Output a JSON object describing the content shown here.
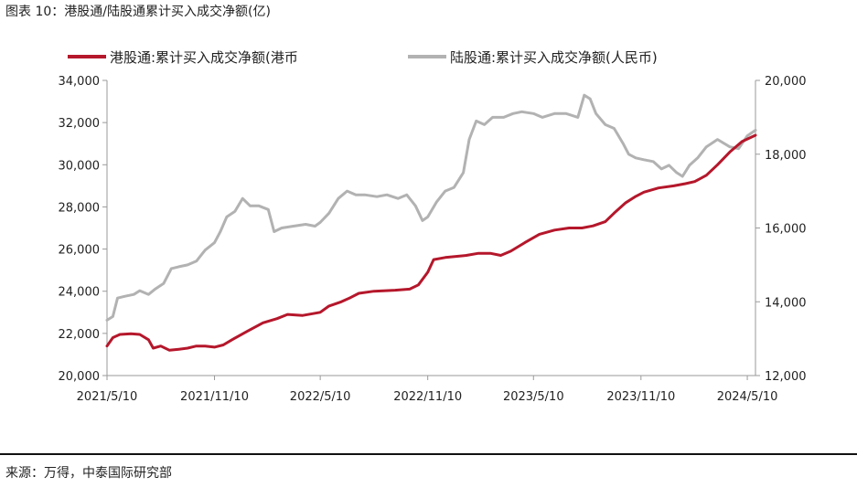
{
  "figure_title": "图表 10：港股通/陆股通累计买入成交净额(亿)",
  "source": "来源：万得，中泰国际研究部",
  "colors": {
    "hk": "#b5172b",
    "cn": "#b2b2b2",
    "axis": "#9a9a9a",
    "text": "#222222"
  },
  "chart_data": {
    "type": "line",
    "legend_position": "top",
    "grid": false,
    "x_range": [
      "2021-05-10",
      "2024-05-24"
    ],
    "x_ticks": [
      "2021/5/10",
      "2021/11/10",
      "2022/5/10",
      "2022/11/10",
      "2023/5/10",
      "2023/11/10",
      "2024/5/10"
    ],
    "y_left": {
      "ylim": [
        20000,
        34000
      ],
      "ticks": [
        "20,000",
        "22,000",
        "24,000",
        "26,000",
        "28,000",
        "30,000",
        "32,000",
        "34,000"
      ]
    },
    "y_right": {
      "ylim": [
        12000,
        20000
      ],
      "ticks": [
        "12,000",
        "14,000",
        "16,000",
        "18,000",
        "20,000"
      ]
    },
    "series": [
      {
        "name": "港股通:累计买入成交净额(港币",
        "axis": "left",
        "points": [
          [
            "2021-05-10",
            21400
          ],
          [
            "2021-05-20",
            21800
          ],
          [
            "2021-06-01",
            21950
          ],
          [
            "2021-06-20",
            21980
          ],
          [
            "2021-07-05",
            21950
          ],
          [
            "2021-07-20",
            21700
          ],
          [
            "2021-07-28",
            21300
          ],
          [
            "2021-08-10",
            21400
          ],
          [
            "2021-08-25",
            21200
          ],
          [
            "2021-09-10",
            21250
          ],
          [
            "2021-09-25",
            21300
          ],
          [
            "2021-10-10",
            21400
          ],
          [
            "2021-10-25",
            21400
          ],
          [
            "2021-11-10",
            21350
          ],
          [
            "2021-11-25",
            21450
          ],
          [
            "2021-12-10",
            21700
          ],
          [
            "2022-01-05",
            22100
          ],
          [
            "2022-02-01",
            22500
          ],
          [
            "2022-02-25",
            22700
          ],
          [
            "2022-03-15",
            22900
          ],
          [
            "2022-04-10",
            22850
          ],
          [
            "2022-05-10",
            23000
          ],
          [
            "2022-05-25",
            23300
          ],
          [
            "2022-06-15",
            23500
          ],
          [
            "2022-07-01",
            23700
          ],
          [
            "2022-07-15",
            23900
          ],
          [
            "2022-08-10",
            24000
          ],
          [
            "2022-09-15",
            24050
          ],
          [
            "2022-10-10",
            24100
          ],
          [
            "2022-10-25",
            24300
          ],
          [
            "2022-11-10",
            24900
          ],
          [
            "2022-11-20",
            25500
          ],
          [
            "2022-12-10",
            25600
          ],
          [
            "2023-01-15",
            25700
          ],
          [
            "2023-02-05",
            25800
          ],
          [
            "2023-02-25",
            25800
          ],
          [
            "2023-03-15",
            25700
          ],
          [
            "2023-04-01",
            25900
          ],
          [
            "2023-04-25",
            26300
          ],
          [
            "2023-05-20",
            26700
          ],
          [
            "2023-06-15",
            26900
          ],
          [
            "2023-07-10",
            27000
          ],
          [
            "2023-08-01",
            27000
          ],
          [
            "2023-08-20",
            27100
          ],
          [
            "2023-09-10",
            27300
          ],
          [
            "2023-09-25",
            27700
          ],
          [
            "2023-10-15",
            28200
          ],
          [
            "2023-11-01",
            28500
          ],
          [
            "2023-11-15",
            28700
          ],
          [
            "2023-12-10",
            28900
          ],
          [
            "2024-01-05",
            29000
          ],
          [
            "2024-01-25",
            29100
          ],
          [
            "2024-02-10",
            29200
          ],
          [
            "2024-03-01",
            29500
          ],
          [
            "2024-03-20",
            30000
          ],
          [
            "2024-04-10",
            30600
          ],
          [
            "2024-05-01",
            31100
          ],
          [
            "2024-05-24",
            31400
          ]
        ]
      },
      {
        "name": "陆股通:累计买入成交净额(人民币)",
        "axis": "right",
        "points": [
          [
            "2021-05-10",
            13500
          ],
          [
            "2021-05-20",
            13600
          ],
          [
            "2021-05-28",
            14100
          ],
          [
            "2021-06-10",
            14150
          ],
          [
            "2021-06-25",
            14200
          ],
          [
            "2021-07-05",
            14300
          ],
          [
            "2021-07-20",
            14200
          ],
          [
            "2021-08-01",
            14350
          ],
          [
            "2021-08-15",
            14500
          ],
          [
            "2021-08-28",
            14900
          ],
          [
            "2021-09-10",
            14950
          ],
          [
            "2021-09-25",
            15000
          ],
          [
            "2021-10-10",
            15100
          ],
          [
            "2021-10-25",
            15400
          ],
          [
            "2021-11-10",
            15600
          ],
          [
            "2021-11-20",
            15900
          ],
          [
            "2021-12-01",
            16300
          ],
          [
            "2021-12-15",
            16450
          ],
          [
            "2021-12-28",
            16800
          ],
          [
            "2022-01-10",
            16600
          ],
          [
            "2022-01-25",
            16600
          ],
          [
            "2022-02-10",
            16500
          ],
          [
            "2022-02-20",
            15900
          ],
          [
            "2022-03-05",
            16000
          ],
          [
            "2022-03-25",
            16050
          ],
          [
            "2022-04-15",
            16100
          ],
          [
            "2022-05-01",
            16050
          ],
          [
            "2022-05-10",
            16150
          ],
          [
            "2022-05-25",
            16400
          ],
          [
            "2022-06-10",
            16800
          ],
          [
            "2022-06-25",
            17000
          ],
          [
            "2022-07-10",
            16900
          ],
          [
            "2022-07-25",
            16900
          ],
          [
            "2022-08-15",
            16850
          ],
          [
            "2022-09-01",
            16900
          ],
          [
            "2022-09-20",
            16800
          ],
          [
            "2022-10-05",
            16900
          ],
          [
            "2022-10-20",
            16600
          ],
          [
            "2022-11-01",
            16200
          ],
          [
            "2022-11-10",
            16300
          ],
          [
            "2022-11-25",
            16700
          ],
          [
            "2022-12-10",
            17000
          ],
          [
            "2022-12-25",
            17100
          ],
          [
            "2023-01-10",
            17500
          ],
          [
            "2023-01-20",
            18400
          ],
          [
            "2023-02-01",
            18900
          ],
          [
            "2023-02-15",
            18800
          ],
          [
            "2023-03-01",
            19000
          ],
          [
            "2023-03-20",
            19000
          ],
          [
            "2023-04-05",
            19100
          ],
          [
            "2023-04-20",
            19150
          ],
          [
            "2023-05-10",
            19100
          ],
          [
            "2023-05-25",
            19000
          ],
          [
            "2023-06-15",
            19100
          ],
          [
            "2023-07-05",
            19100
          ],
          [
            "2023-07-25",
            19000
          ],
          [
            "2023-08-05",
            19600
          ],
          [
            "2023-08-15",
            19500
          ],
          [
            "2023-08-25",
            19100
          ],
          [
            "2023-09-10",
            18800
          ],
          [
            "2023-09-25",
            18700
          ],
          [
            "2023-10-10",
            18300
          ],
          [
            "2023-10-20",
            18000
          ],
          [
            "2023-11-01",
            17900
          ],
          [
            "2023-11-15",
            17850
          ],
          [
            "2023-12-01",
            17800
          ],
          [
            "2023-12-15",
            17600
          ],
          [
            "2023-12-28",
            17700
          ],
          [
            "2024-01-10",
            17500
          ],
          [
            "2024-01-20",
            17400
          ],
          [
            "2024-02-01",
            17700
          ],
          [
            "2024-02-15",
            17900
          ],
          [
            "2024-03-01",
            18200
          ],
          [
            "2024-03-20",
            18400
          ],
          [
            "2024-04-10",
            18200
          ],
          [
            "2024-04-25",
            18150
          ],
          [
            "2024-05-10",
            18500
          ],
          [
            "2024-05-24",
            18650
          ]
        ]
      }
    ]
  }
}
